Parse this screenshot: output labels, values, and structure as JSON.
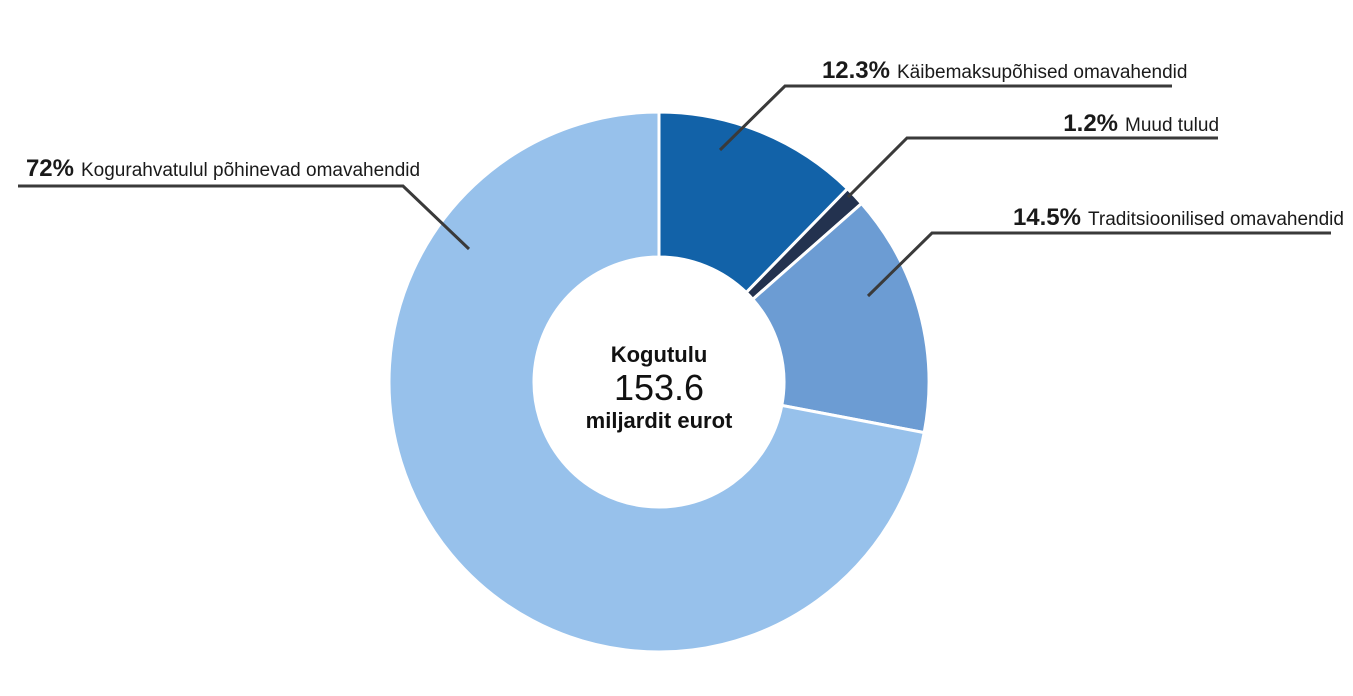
{
  "chart_data": {
    "type": "pie",
    "variant": "donut",
    "center": {
      "title": "Kogutulu",
      "value": "153.6",
      "unit": "miljardit eurot"
    },
    "slices": [
      {
        "label": "Käibemaksupõhised omavahendid",
        "percent_label": "12.3%",
        "value": 12.3,
        "color": "#1262a8"
      },
      {
        "label": "Muud tulud",
        "percent_label": "1.2%",
        "value": 1.2,
        "color": "#23324f"
      },
      {
        "label": "Traditsioonilised omavahendid",
        "percent_label": "14.5%",
        "value": 14.5,
        "color": "#6c9cd3"
      },
      {
        "label": "Kogurahvatulul põhinevad omavahendid",
        "percent_label": "72%",
        "value": 72,
        "color": "#97c1eb"
      }
    ]
  }
}
